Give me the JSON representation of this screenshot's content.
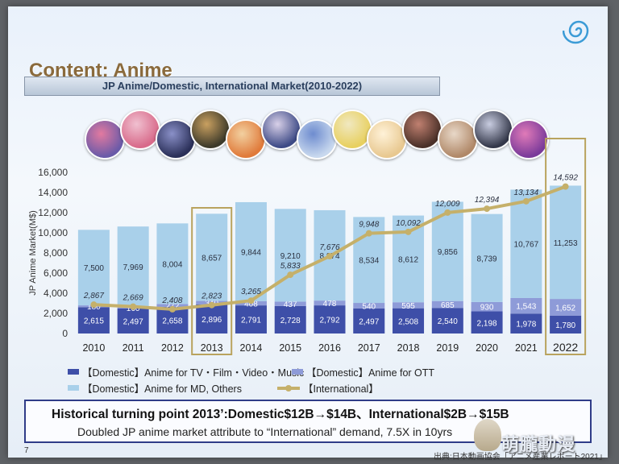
{
  "title": "Content: Anime",
  "subtitle": "JP Anime/Domestic, International Market(2010-2022)",
  "page_number": "7",
  "source": "出典:日本動画協会「アニメ産業レポート2021」",
  "watermark": "萌朧動漫",
  "callout": {
    "line1": "Historical turning point 2013’:Domestic$12B→$14B、International$2B→$15B",
    "line2": "Doubled JP anime market attribute to “International” demand, 7.5X in 10yrs"
  },
  "legend": {
    "tv": "【Domestic】Anime for TV・Film・Video・Music",
    "ott": "【Domestic】Anime for OTT",
    "md": "【Domestic】Anime for MD, Others",
    "intl": "【International】"
  },
  "colors": {
    "tv": "#3e4fa8",
    "ott": "#8e9bd8",
    "md": "#a9d0ea",
    "intl": "#c5b06a",
    "highlight": "#b9a35e"
  },
  "chart_data": {
    "type": "bar",
    "stacked": true,
    "ylabel": "JP Anime Market(M$)",
    "ylim": [
      0,
      16000
    ],
    "yticks": [
      "0",
      "2,000",
      "4,000",
      "6,000",
      "8,000",
      "10,000",
      "12,000",
      "14,000",
      "16,000"
    ],
    "yticks_values": [
      0,
      2000,
      4000,
      6000,
      8000,
      10000,
      12000,
      14000,
      16000
    ],
    "categories": [
      "2010",
      "2011",
      "2012",
      "2013",
      "2014",
      "2015",
      "2016",
      "2017",
      "2018",
      "2019",
      "2020",
      "2021",
      "2022"
    ],
    "highlight_categories": [
      "2013",
      "2022"
    ],
    "series": [
      {
        "name": "【Domestic】Anime for TV・Film・Video・Music",
        "key": "tv",
        "values": [
          2615,
          2497,
          2658,
          2896,
          2791,
          2728,
          2792,
          2497,
          2508,
          2540,
          2198,
          1978,
          1780
        ],
        "labels": [
          "2,615",
          "2,497",
          "2,658",
          "2,896",
          "2,791",
          "2,728",
          "2,792",
          "2,497",
          "2,508",
          "2,540",
          "2,198",
          "1,978",
          "1,780"
        ]
      },
      {
        "name": "【Domestic】Anime for OTT",
        "key": "ott",
        "values": [
          180,
          160,
          272,
          340,
          408,
          437,
          478,
          540,
          595,
          685,
          930,
          1543,
          1652
        ],
        "labels": [
          "180",
          "160",
          "272",
          "340",
          "408",
          "437",
          "478",
          "540",
          "595",
          "685",
          "930",
          "1,543",
          "1,652"
        ]
      },
      {
        "name": "【Domestic】Anime for MD, Others",
        "key": "md",
        "values": [
          7500,
          7969,
          8004,
          8657,
          9844,
          9210,
          8974,
          8534,
          8612,
          9856,
          8739,
          10767,
          11253
        ],
        "labels": [
          "7,500",
          "7,969",
          "8,004",
          "8,657",
          "9,844",
          "9,210",
          "8,974",
          "8,534",
          "8,612",
          "9,856",
          "8,739",
          "10,767",
          "11,253"
        ]
      }
    ],
    "line": {
      "name": "【International】",
      "key": "intl",
      "values": [
        2867,
        2669,
        2408,
        2823,
        3265,
        5833,
        7676,
        9948,
        10092,
        12009,
        12394,
        13134,
        14592
      ],
      "labels": [
        "2,867",
        "2,669",
        "2,408",
        "2,823",
        "3,265",
        "5,833",
        "7,676",
        "9,948",
        "10,092",
        "12,009",
        "12,394",
        "13,134",
        "14,592"
      ]
    }
  }
}
